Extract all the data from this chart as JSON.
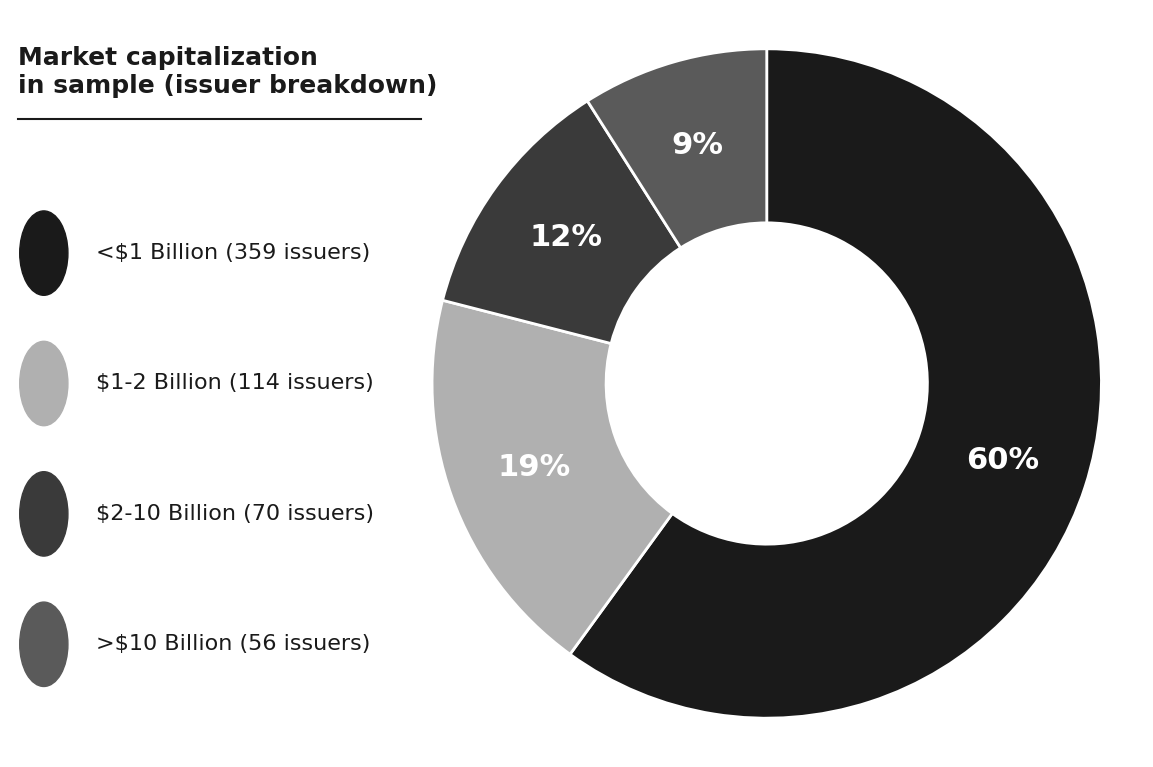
{
  "title": "Market capitalization\nin sample (issuer breakdown)",
  "title_fontsize": 18,
  "title_fontweight": "bold",
  "slices": [
    60,
    19,
    12,
    9
  ],
  "labels": [
    "60%",
    "19%",
    "12%",
    "9%"
  ],
  "colors": [
    "#1a1a1a",
    "#b0b0b0",
    "#3a3a3a",
    "#5a5a5a"
  ],
  "legend_labels": [
    "<$1 Billion (359 issuers)",
    "$1-2 Billion (114 issuers)",
    "$2-10 Billion (70 issuers)",
    ">$10 Billion (56 issuers)"
  ],
  "legend_colors": [
    "#1a1a1a",
    "#b0b0b0",
    "#3a3a3a",
    "#5a5a5a"
  ],
  "wedge_text_color": "white",
  "background_color": "#ffffff",
  "start_angle": 90,
  "label_fontsize": 22,
  "legend_fontsize": 16
}
